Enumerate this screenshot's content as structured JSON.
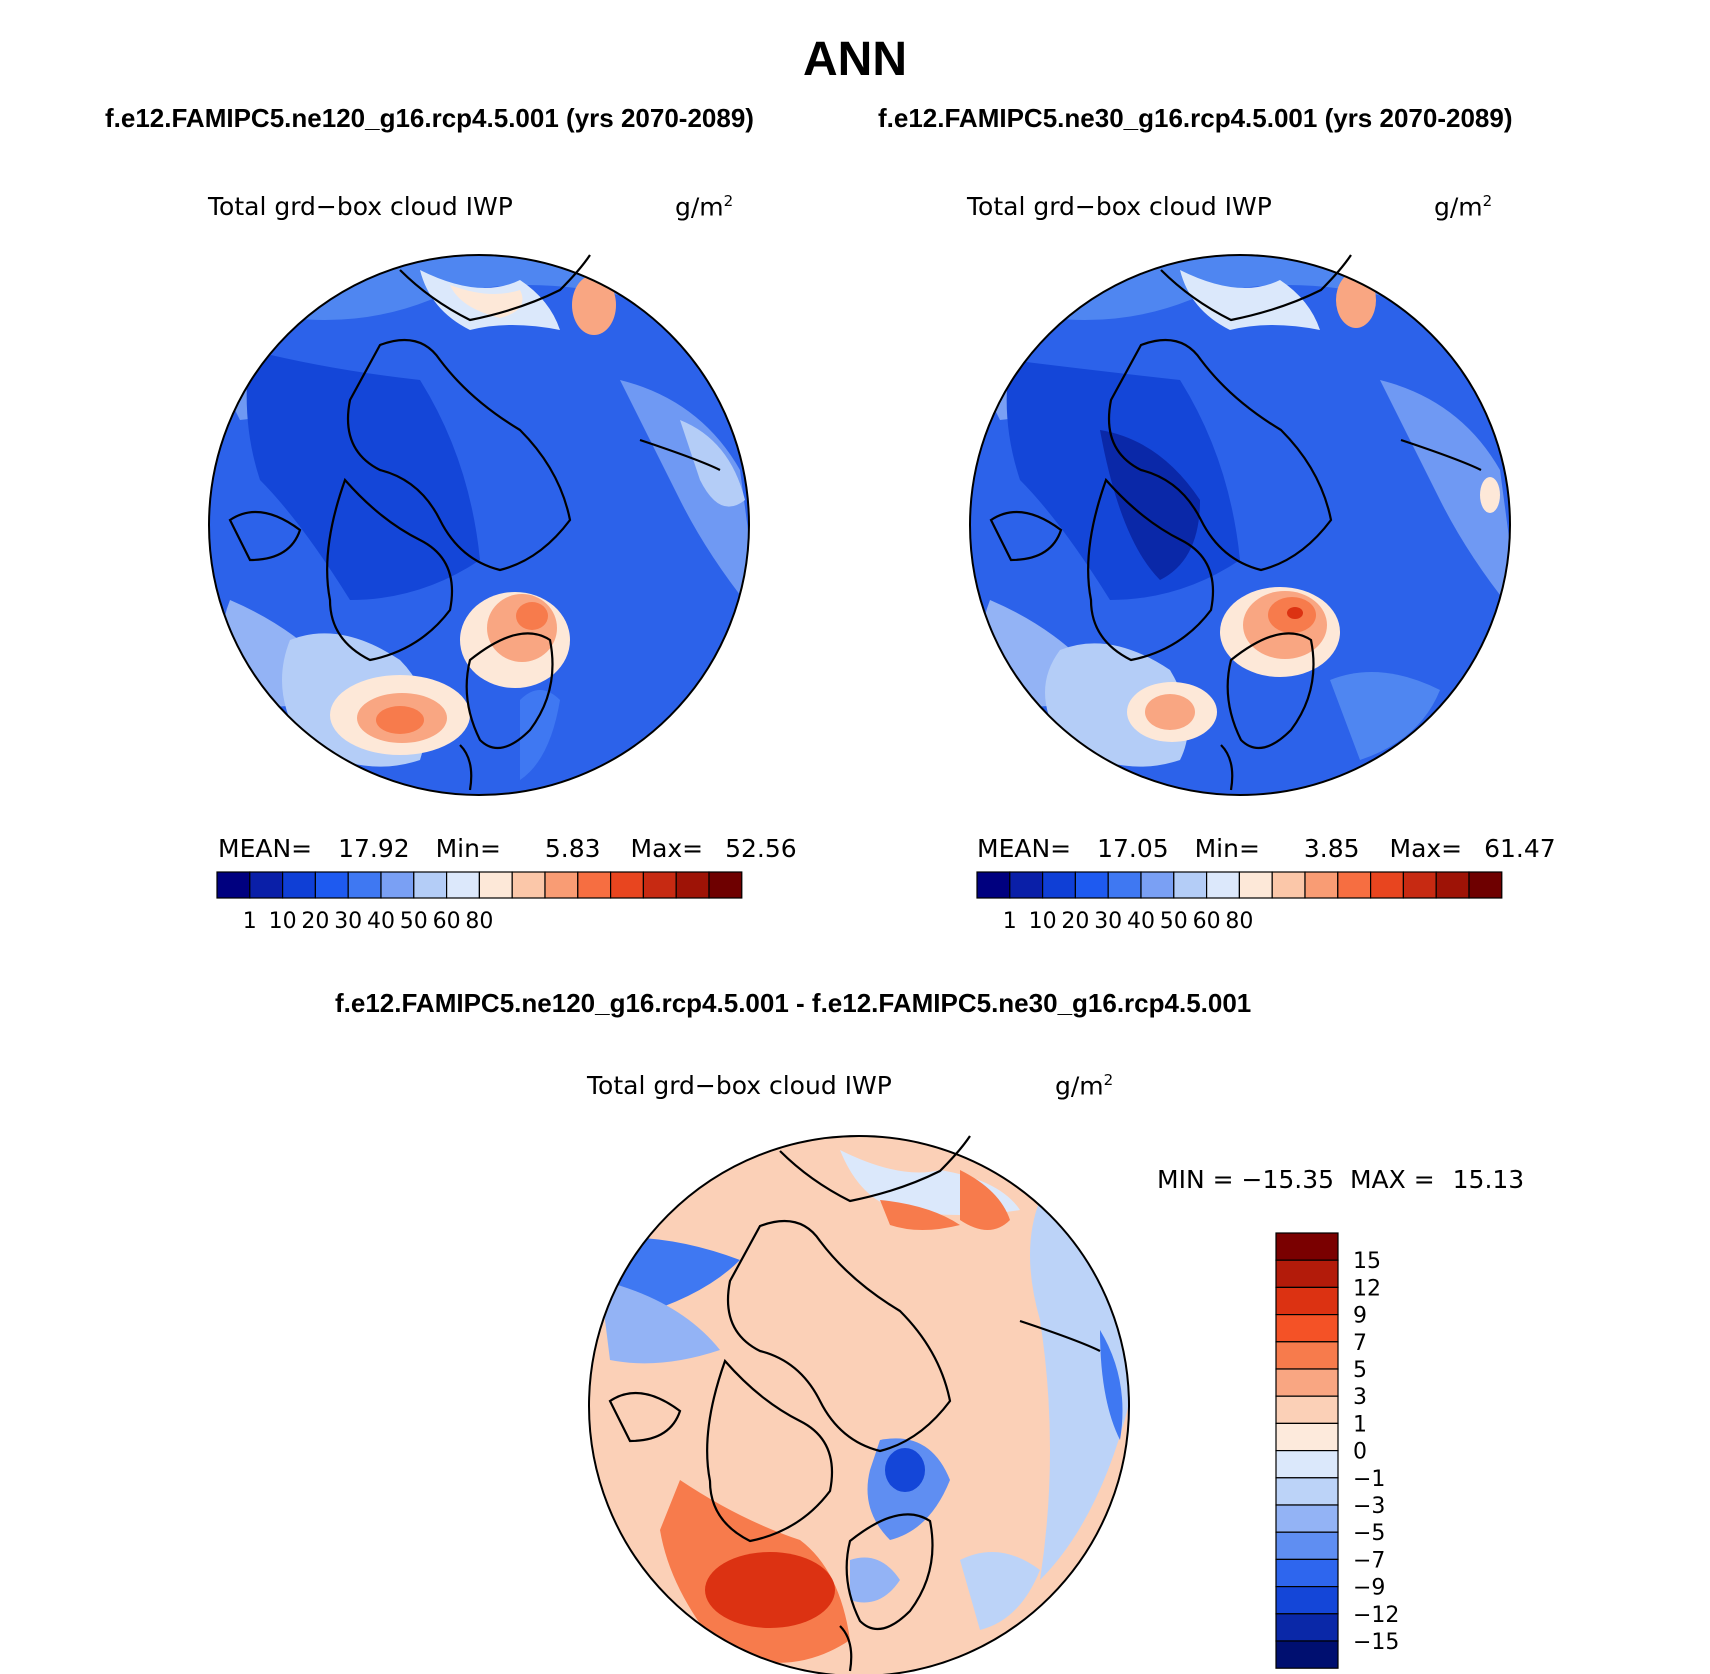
{
  "title": "ANN",
  "panels": [
    {
      "case_title": "f.e12.FAMIPC5.ne120_g16.rcp4.5.001 (yrs 2070-2089)",
      "variable": "Total grd−box cloud IWP",
      "units": "g/m",
      "stats": {
        "mean_label": "MEAN=",
        "mean": "17.92",
        "min_label": "Min=",
        "min": "5.83",
        "max_label": "Max=",
        "max": "52.56"
      }
    },
    {
      "case_title": "f.e12.FAMIPC5.ne30_g16.rcp4.5.001 (yrs 2070-2089)",
      "variable": "Total grd−box cloud IWP",
      "units": "g/m",
      "stats": {
        "mean_label": "MEAN=",
        "mean": "17.05",
        "min_label": "Min=",
        "min": "3.85",
        "max_label": "Max=",
        "max": "61.47"
      }
    },
    {
      "case_title": "f.e12.FAMIPC5.ne120_g16.rcp4.5.001 - f.e12.FAMIPC5.ne30_g16.rcp4.5.001",
      "variable": "Total grd−box cloud IWP",
      "units": "g/m",
      "stats": {
        "min_label": "MIN =",
        "min": "−15.35",
        "max_label": "MAX =",
        "max": "15.13"
      }
    }
  ],
  "units_superscript": "2",
  "chart_data": [
    {
      "type": "heatmap",
      "projection": "north-polar-stereographic",
      "title": "Total grd−box cloud IWP",
      "units": "g/m2",
      "case": "ne120",
      "mean": 17.92,
      "min": 5.83,
      "max": 52.56,
      "colorbar": {
        "orientation": "horizontal",
        "labels": [
          "1",
          "10",
          "20",
          "30",
          "40",
          "50",
          "60",
          "80"
        ],
        "colors": [
          "#00007f",
          "#0a1fa8",
          "#0f3fd6",
          "#1e5af0",
          "#3f78f2",
          "#7aa0f4",
          "#b4cdf7",
          "#dce8fb",
          "#fde8d8",
          "#fbc7a9",
          "#f99c74",
          "#f66e41",
          "#e8451f",
          "#c72a12",
          "#9e1306",
          "#6e0000"
        ]
      }
    },
    {
      "type": "heatmap",
      "projection": "north-polar-stereographic",
      "title": "Total grd−box cloud IWP",
      "units": "g/m2",
      "case": "ne30",
      "mean": 17.05,
      "min": 3.85,
      "max": 61.47,
      "colorbar": {
        "orientation": "horizontal",
        "labels": [
          "1",
          "10",
          "20",
          "30",
          "40",
          "50",
          "60",
          "80"
        ],
        "colors": [
          "#00007f",
          "#0a1fa8",
          "#0f3fd6",
          "#1e5af0",
          "#3f78f2",
          "#7aa0f4",
          "#b4cdf7",
          "#dce8fb",
          "#fde8d8",
          "#fbc7a9",
          "#f99c74",
          "#f66e41",
          "#e8451f",
          "#c72a12",
          "#9e1306",
          "#6e0000"
        ]
      }
    },
    {
      "type": "heatmap",
      "projection": "north-polar-stereographic",
      "title": "Total grd−box cloud IWP",
      "units": "g/m2",
      "case": "difference",
      "min": -15.35,
      "max": 15.13,
      "colorbar": {
        "orientation": "vertical",
        "labels": [
          "15",
          "12",
          "9",
          "7",
          "5",
          "3",
          "1",
          "0",
          "−1",
          "−3",
          "−5",
          "−7",
          "−9",
          "−12",
          "−15"
        ],
        "colors": [
          "#7a0000",
          "#b31b0a",
          "#dc3212",
          "#f45226",
          "#f77b4c",
          "#f9a682",
          "#fbd0b7",
          "#fdeadc",
          "#dbe8fb",
          "#bcd3f8",
          "#93b3f5",
          "#5f8ef2",
          "#2e66ee",
          "#1446d8",
          "#0a28a8",
          "#000f70"
        ]
      }
    }
  ]
}
